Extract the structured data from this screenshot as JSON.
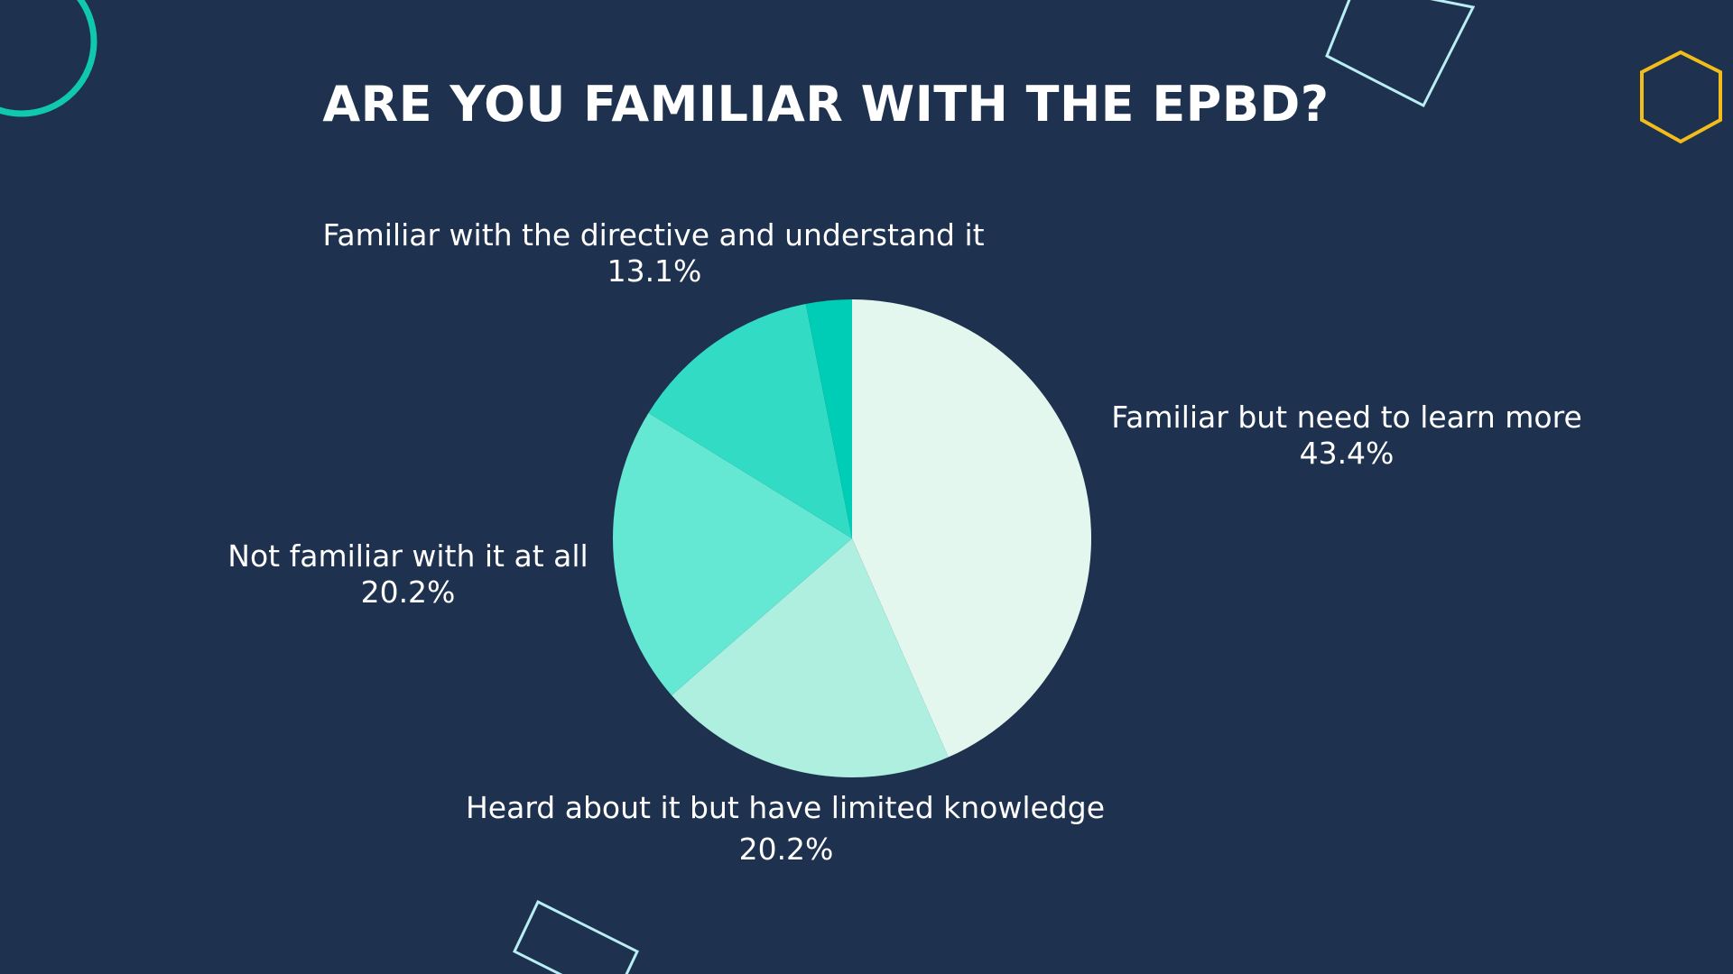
{
  "title": "ARE YOU FAMILIAR WITH THE EPBD?",
  "colors": {
    "background": "#1e3250",
    "text": "#ffffff",
    "slices": [
      "#e4f7ee",
      "#aeefe0",
      "#64e8d3",
      "#32dbc4",
      "#00cdb5"
    ],
    "deco_circle": "#10c8ac",
    "deco_square": "#b9eef4",
    "deco_hexagon": "#f2bd1a"
  },
  "chart_data": {
    "type": "pie",
    "title": "ARE YOU FAMILIAR WITH THE EPBD?",
    "start_angle_deg": 0,
    "direction": "clockwise",
    "slices": [
      {
        "label": "Familiar but need to learn more",
        "value": 43.4,
        "value_label": "43.4%"
      },
      {
        "label": "Heard about it but have limited knowledge",
        "value": 20.2,
        "value_label": "20.2%"
      },
      {
        "label": "Not familiar with it at all",
        "value": 20.2,
        "value_label": "20.2%"
      },
      {
        "label": "Familiar with the directive and understand it",
        "value": 13.1,
        "value_label": "13.1%"
      },
      {
        "label": "",
        "value": 3.1,
        "value_label": ""
      }
    ]
  }
}
